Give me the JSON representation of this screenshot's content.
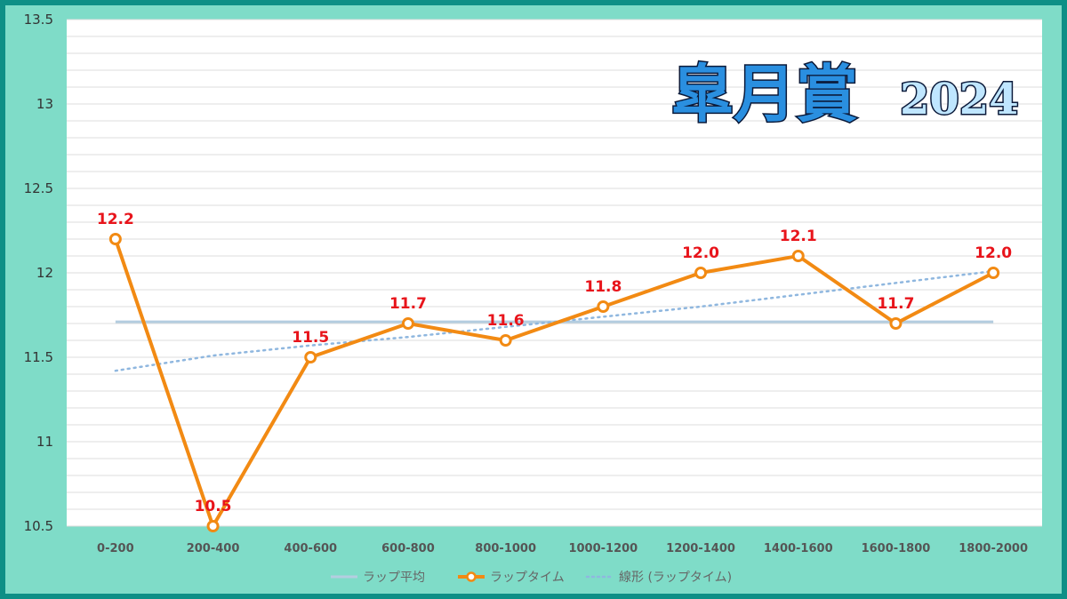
{
  "title": {
    "main": "皐月賞",
    "year": "2024"
  },
  "colors": {
    "frame_border": "#0e8f86",
    "frame_fill": "#7fdcc8",
    "plot_bg": "#ffffff",
    "gridline": "#dddddd",
    "lap_time": "#f28a13",
    "lap_average": "#b4cde0",
    "trend": "#8fb7df",
    "data_label": "#e8141b"
  },
  "legend": [
    {
      "key": "avg",
      "label": "ラップ平均"
    },
    {
      "key": "lap",
      "label": "ラップタイム"
    },
    {
      "key": "trend",
      "label": "線形 (ラップタイム)"
    }
  ],
  "chart_data": {
    "type": "line",
    "categories": [
      "0-200",
      "200-400",
      "400-600",
      "600-800",
      "800-1000",
      "1000-1200",
      "1200-1400",
      "1400-1600",
      "1600-1800",
      "1800-2000"
    ],
    "series": [
      {
        "name": "ラップタイム",
        "values": [
          12.2,
          10.5,
          11.5,
          11.7,
          11.6,
          11.8,
          12.0,
          12.1,
          11.7,
          12.0
        ],
        "data_labels": [
          "12.2",
          "10.5",
          "11.5",
          "11.7",
          "11.6",
          "11.8",
          "12.0",
          "12.1",
          "11.7",
          "12.0"
        ]
      },
      {
        "name": "ラップ平均",
        "values": [
          11.71,
          11.71,
          11.71,
          11.71,
          11.71,
          11.71,
          11.71,
          11.71,
          11.71,
          11.71
        ]
      },
      {
        "name": "線形 (ラップタイム)",
        "type": "trendline",
        "values": [
          11.42,
          11.51,
          11.57,
          11.62,
          11.68,
          11.74,
          11.8,
          11.87,
          11.94,
          12.01
        ]
      }
    ],
    "y_ticks": [
      "10.5",
      "11",
      "11.5",
      "12",
      "12.5",
      "13",
      "13.5"
    ],
    "ylim": [
      10.5,
      13.5
    ],
    "grid": true,
    "legend_position": "bottom"
  }
}
